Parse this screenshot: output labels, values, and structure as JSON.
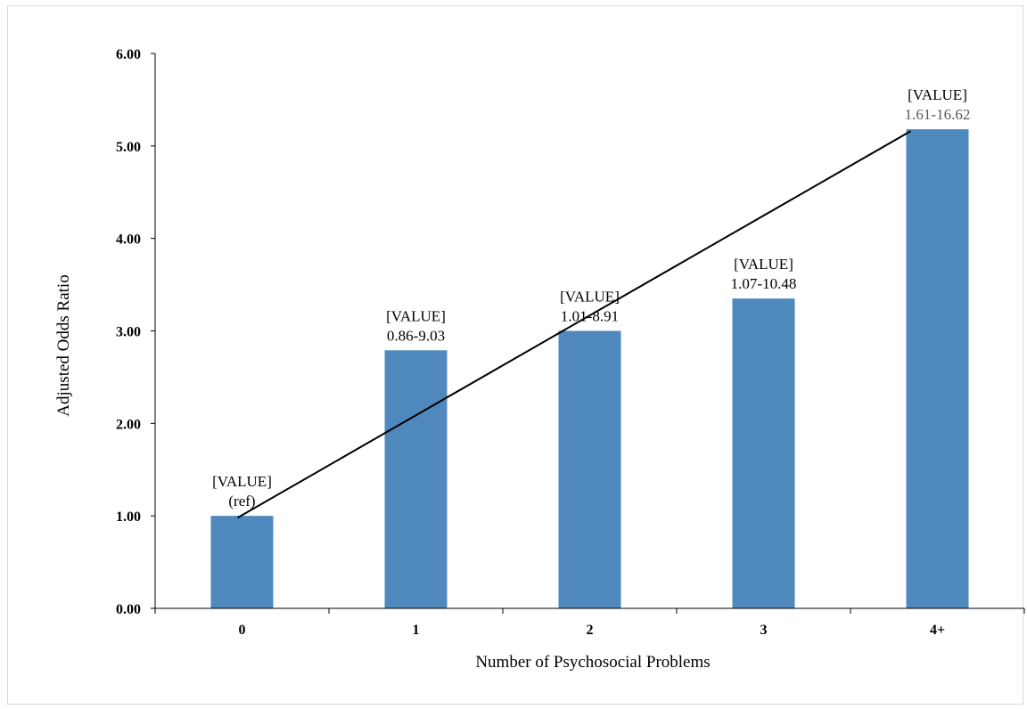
{
  "chart_data": {
    "type": "bar",
    "title": "",
    "xlabel": "Number of Psychosocial Problems",
    "ylabel": "Adjusted Odds Ratio",
    "categories": [
      "0",
      "1",
      "2",
      "3",
      "4+"
    ],
    "values": [
      1.0,
      2.79,
      3.0,
      3.35,
      5.18
    ],
    "ylim": [
      0,
      6
    ],
    "yticks": [
      "0.00",
      "1.00",
      "2.00",
      "3.00",
      "4.00",
      "5.00",
      "6.00"
    ],
    "data_labels": [
      {
        "value": "[VALUE]",
        "ci": "(ref)"
      },
      {
        "value": "[VALUE]",
        "ci": "0.86-9.03"
      },
      {
        "value": "[VALUE]",
        "ci": "1.01-8.91"
      },
      {
        "value": "[VALUE]",
        "ci": "1.07-10.48"
      },
      {
        "value": "[VALUE]",
        "ci": "1.61-16.62"
      }
    ],
    "trendline": {
      "type": "linear",
      "start": 0.98,
      "end": 5.16
    },
    "bar_color": "#4f88bc",
    "grid": false,
    "legend": "none"
  }
}
